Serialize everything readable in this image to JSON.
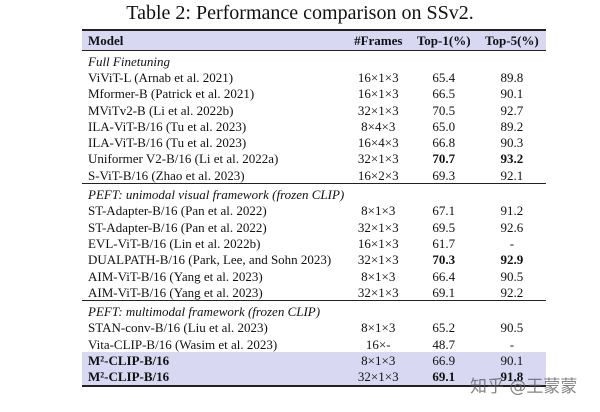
{
  "title": "Table 2: Performance comparison on SSv2.",
  "table": {
    "header": [
      "Model",
      "#Frames",
      "Top-1(%)",
      "Top-5(%)"
    ],
    "groups": [
      {
        "label": "Full Finetuning",
        "rows": [
          {
            "cells": [
              "ViViT-L (Arnab et al. 2021)",
              "16×1×3",
              "65.4",
              "89.8"
            ]
          },
          {
            "cells": [
              "Mformer-B (Patrick et al. 2021)",
              "16×1×3",
              "66.5",
              "90.1"
            ]
          },
          {
            "cells": [
              "MViTv2-B (Li et al. 2022b)",
              "32×1×3",
              "70.5",
              "92.7"
            ]
          },
          {
            "cells": [
              "ILA-ViT-B/16 (Tu et al. 2023)",
              "8×4×3",
              "65.0",
              "89.2"
            ]
          },
          {
            "cells": [
              "ILA-ViT-B/16 (Tu et al. 2023)",
              "16×4×3",
              "66.8",
              "90.3"
            ]
          },
          {
            "cells": [
              "Uniformer V2-B/16 (Li et al. 2022a)",
              "32×1×3",
              "70.7",
              "93.2"
            ],
            "bold": [
              2,
              3
            ]
          },
          {
            "cells": [
              "S-ViT-B/16 (Zhao et al. 2023)",
              "16×2×3",
              "69.3",
              "92.1"
            ]
          }
        ]
      },
      {
        "label": "PEFT: unimodal visual framework (frozen CLIP)",
        "rows": [
          {
            "cells": [
              "ST-Adapter-B/16 (Pan et al. 2022)",
              "8×1×3",
              "67.1",
              "91.2"
            ]
          },
          {
            "cells": [
              "ST-Adapter-B/16 (Pan et al. 2022)",
              "32×1×3",
              "69.5",
              "92.6"
            ]
          },
          {
            "cells": [
              "EVL-ViT-B/16 (Lin et al. 2022b)",
              "16×1×3",
              "61.7",
              "-"
            ]
          },
          {
            "cells": [
              "DUALPATH-B/16 (Park, Lee, and Sohn 2023)",
              "32×1×3",
              "70.3",
              "92.9"
            ],
            "bold": [
              2,
              3
            ]
          },
          {
            "cells": [
              "AIM-ViT-B/16 (Yang et al. 2023)",
              "8×1×3",
              "66.4",
              "90.5"
            ]
          },
          {
            "cells": [
              "AIM-ViT-B/16 (Yang et al. 2023)",
              "32×1×3",
              "69.1",
              "92.2"
            ]
          }
        ]
      },
      {
        "label": "PEFT: multimodal framework (frozen CLIP)",
        "rows": [
          {
            "cells": [
              "STAN-conv-B/16 (Liu et al. 2023)",
              "8×1×3",
              "65.2",
              "90.5"
            ]
          },
          {
            "cells": [
              "Vita-CLIP-B/16 (Wasim et al. 2023)",
              "16×-",
              "48.7",
              "-"
            ]
          },
          {
            "cells": [
              "M²-CLIP-B/16",
              "8×1×3",
              "66.9",
              "90.1"
            ],
            "bold": [
              0
            ],
            "highlight": true
          },
          {
            "cells": [
              "M²-CLIP-B/16",
              "32×1×3",
              "69.1",
              "91.8"
            ],
            "bold": [
              0,
              2,
              3
            ],
            "highlight": true
          }
        ]
      }
    ]
  },
  "watermark": "知乎 @王蒙蒙"
}
